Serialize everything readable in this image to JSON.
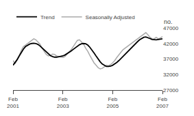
{
  "chart_data": {
    "type": "line",
    "ylabel": "no.",
    "categories": [
      "Feb\n2001",
      null,
      null,
      null,
      null,
      null,
      null,
      null,
      null,
      null,
      null,
      null,
      null,
      null,
      null,
      null,
      null,
      null,
      null,
      null,
      null,
      null,
      null,
      null,
      "Feb\n2003",
      null,
      null,
      null,
      null,
      null,
      null,
      null,
      null,
      null,
      null,
      null,
      null,
      null,
      null,
      null,
      null,
      null,
      null,
      null,
      null,
      null,
      null,
      null,
      "Feb\n2005",
      null,
      null,
      null,
      null,
      null,
      null,
      null,
      null,
      null,
      null,
      null,
      null,
      null,
      null,
      null,
      null,
      null,
      null,
      null,
      null,
      null,
      null,
      null,
      "Feb\n2007"
    ],
    "series": [
      {
        "name": "Seasonally Adjusted",
        "color": "#aaaaaa",
        "values": [
          36500,
          35500,
          37000,
          38200,
          39800,
          41000,
          41500,
          42000,
          42500,
          43200,
          43500,
          43200,
          42500,
          41800,
          40500,
          39500,
          38500,
          38000,
          38200,
          38600,
          38500,
          38000,
          37800,
          37600,
          37500,
          37800,
          38500,
          39200,
          40000,
          41000,
          42000,
          43000,
          43200,
          42500,
          41800,
          40500,
          39500,
          38200,
          37000,
          35800,
          35000,
          34200,
          33800,
          34000,
          34500,
          35000,
          34800,
          35200,
          35800,
          36500,
          37500,
          38500,
          39200,
          40000,
          40500,
          41000,
          41500,
          42000,
          42500,
          43000,
          43500,
          44000,
          44500,
          45000,
          45500,
          44800,
          44000,
          43500,
          43500,
          44000,
          43500,
          43800,
          44200
        ]
      },
      {
        "name": "Trend",
        "color": "#000000",
        "values": [
          35000,
          35800,
          36800,
          38000,
          39200,
          40200,
          41000,
          41500,
          41800,
          42000,
          42100,
          42000,
          41700,
          41200,
          40600,
          39900,
          39200,
          38600,
          38100,
          37800,
          37600,
          37600,
          37700,
          37800,
          38000,
          38300,
          38700,
          39100,
          39600,
          40100,
          40600,
          41100,
          41600,
          41900,
          42000,
          41900,
          41500,
          40800,
          40000,
          39000,
          38000,
          37000,
          36100,
          35400,
          34900,
          34600,
          34600,
          34700,
          35000,
          35400,
          35900,
          36500,
          37200,
          37900,
          38600,
          39300,
          40000,
          40700,
          41400,
          42000,
          42600,
          43200,
          43700,
          44000,
          44100,
          43900,
          43600,
          43300,
          43200,
          43200,
          43300,
          43400,
          43500
        ]
      }
    ],
    "ylim": [
      27000,
      47000
    ],
    "yticks": [
      27000,
      32000,
      37000,
      42000,
      47000
    ],
    "grid": false,
    "legend": "upper left"
  }
}
